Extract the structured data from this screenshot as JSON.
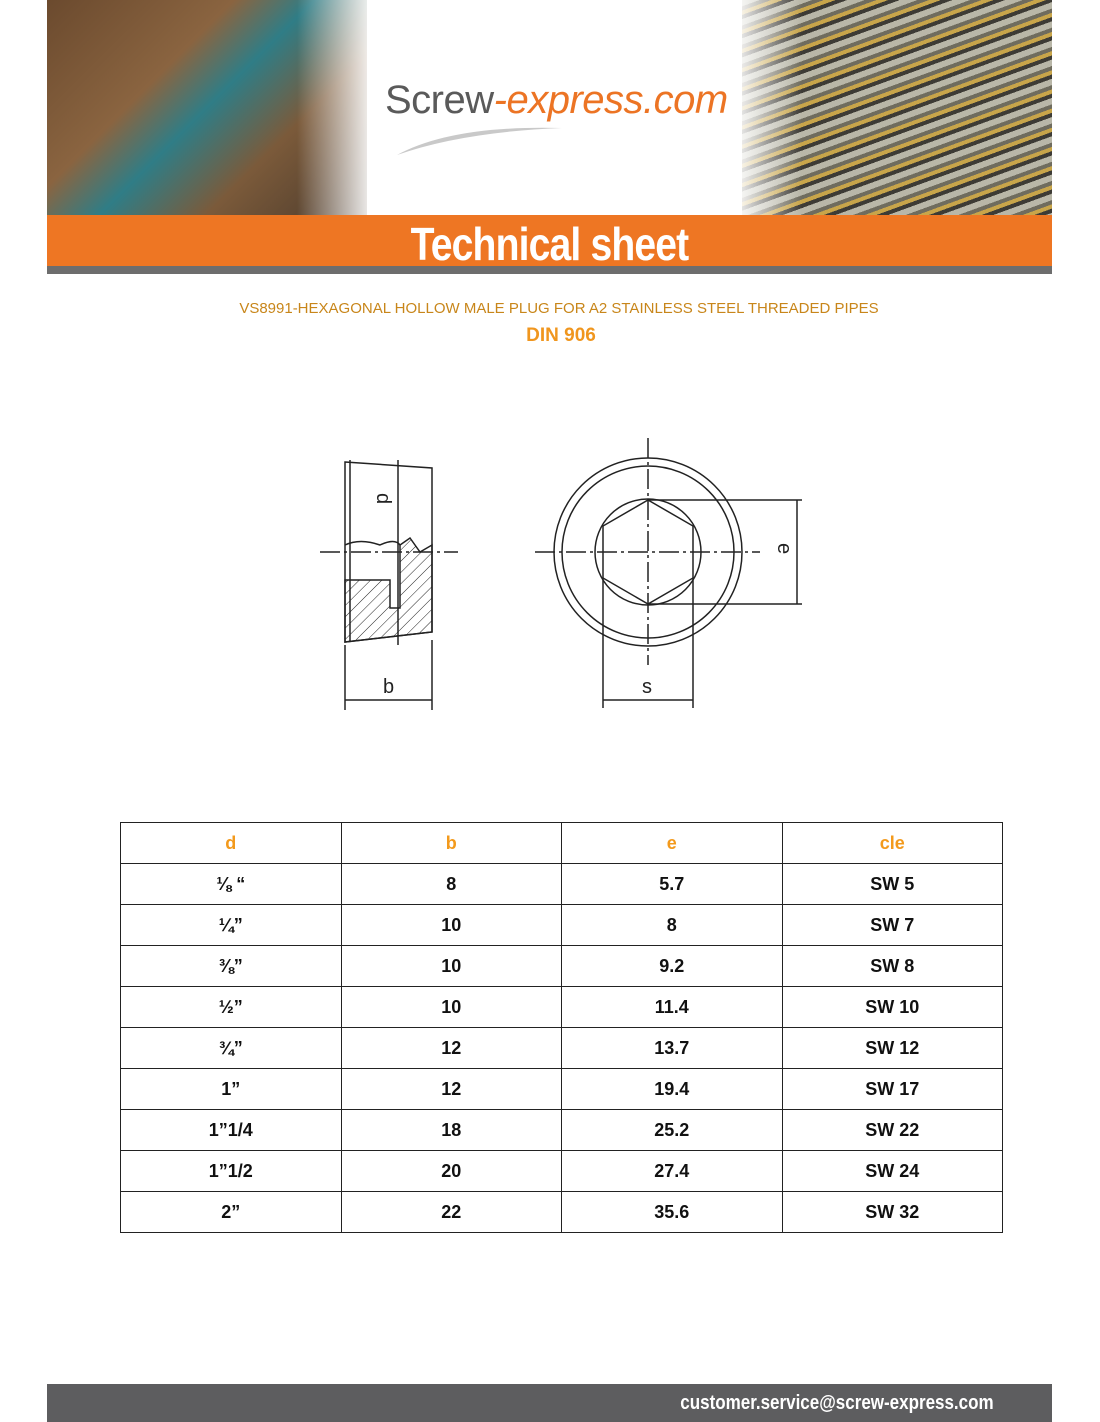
{
  "header": {
    "logo_main": "Screw",
    "logo_accent": "-express.com",
    "banner_title": "Technical sheet"
  },
  "product": {
    "title": "VS8991-HEXAGONAL HOLLOW MALE PLUG FOR A2 STAINLESS STEEL THREADED PIPES",
    "standard": "DIN 906"
  },
  "drawing": {
    "labels": {
      "d": "d",
      "b": "b",
      "e": "e",
      "s": "s"
    }
  },
  "table": {
    "headers": [
      "d",
      "b",
      "e",
      "cle"
    ],
    "rows": [
      [
        "⅛ “",
        "8",
        "5.7",
        "SW 5"
      ],
      [
        "¼”",
        "10",
        "8",
        "SW 7"
      ],
      [
        "⅜”",
        "10",
        "9.2",
        "SW 8"
      ],
      [
        "½”",
        "10",
        "11.4",
        "SW 10"
      ],
      [
        "¾”",
        "12",
        "13.7",
        "SW 12"
      ],
      [
        "1”",
        "12",
        "19.4",
        "SW 17"
      ],
      [
        "1”1/4",
        "18",
        "25.2",
        "SW 22"
      ],
      [
        "1”1/2",
        "20",
        "27.4",
        "SW 24"
      ],
      [
        "2”",
        "22",
        "35.6",
        "SW 32"
      ]
    ]
  },
  "footer": {
    "email": "customer.service@screw-express.com"
  },
  "colors": {
    "orange": "#ee7623",
    "header_text": "#f39a1c",
    "footer": "#5d5d5f"
  }
}
